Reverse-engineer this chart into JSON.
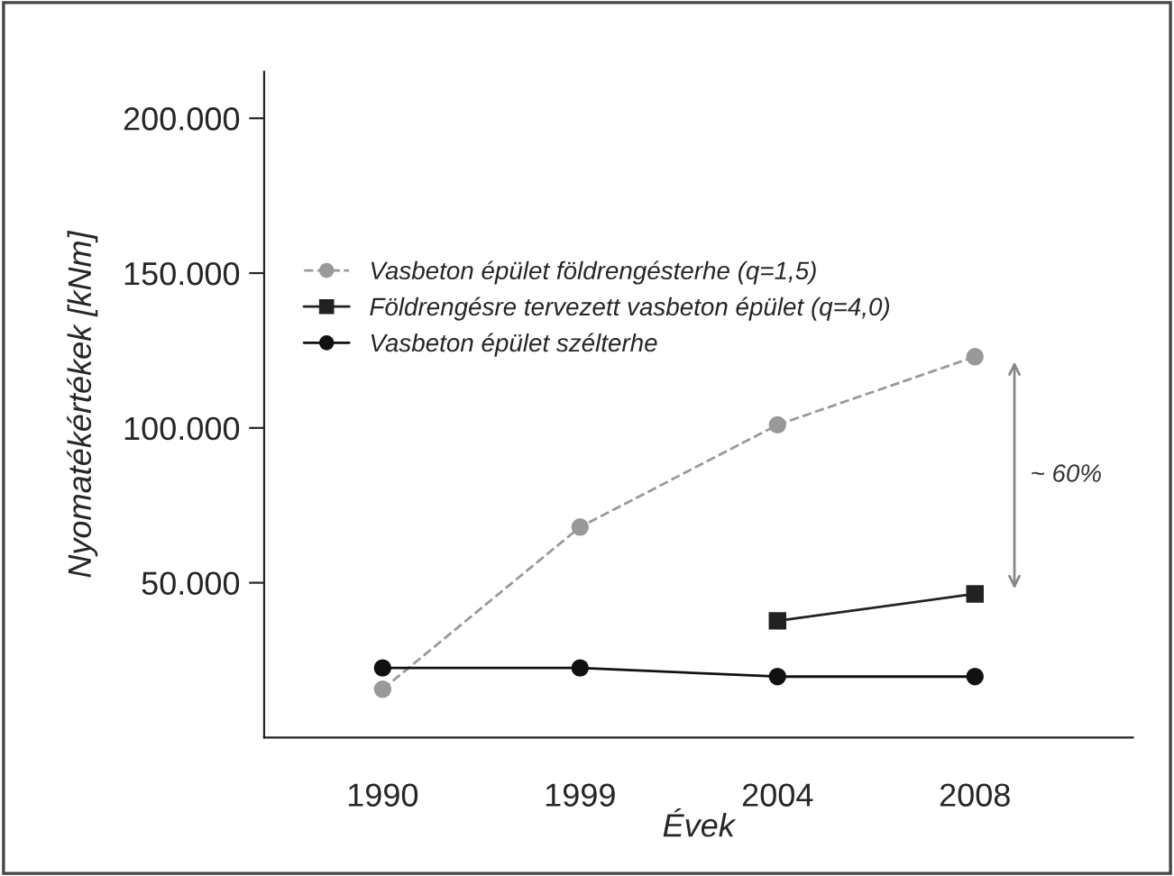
{
  "chart_data": {
    "type": "line",
    "xlabel": "Évek",
    "ylabel": "Nyomatékértékek [kNm]",
    "categories": [
      "1990",
      "1999",
      "2004",
      "2008"
    ],
    "series": [
      {
        "name": "Vasbeton épület földrengésterhe (q=1,5)",
        "color": "#999999",
        "line_style": "dashed",
        "marker": "circle",
        "values": [
          15600,
          68000,
          101000,
          123000
        ]
      },
      {
        "name": "Földrengésre tervezett vasbeton épület (q=4,0)",
        "color": "#222222",
        "line_style": "solid",
        "marker": "square",
        "values": [
          null,
          null,
          37700,
          46400
        ]
      },
      {
        "name": "Vasbeton épület szélterhe",
        "color": "#111111",
        "line_style": "solid",
        "marker": "circle",
        "values": [
          22500,
          22500,
          19700,
          19700
        ]
      }
    ],
    "ylim": [
      0,
      215000
    ],
    "yticks": [
      {
        "value": 50000,
        "label": "50.000"
      },
      {
        "value": 100000,
        "label": "100.000"
      },
      {
        "value": 150000,
        "label": "150.000"
      },
      {
        "value": 200000,
        "label": "200.000"
      }
    ],
    "annotations": [
      "~ 60%"
    ],
    "legend": "top left",
    "grid": false
  }
}
